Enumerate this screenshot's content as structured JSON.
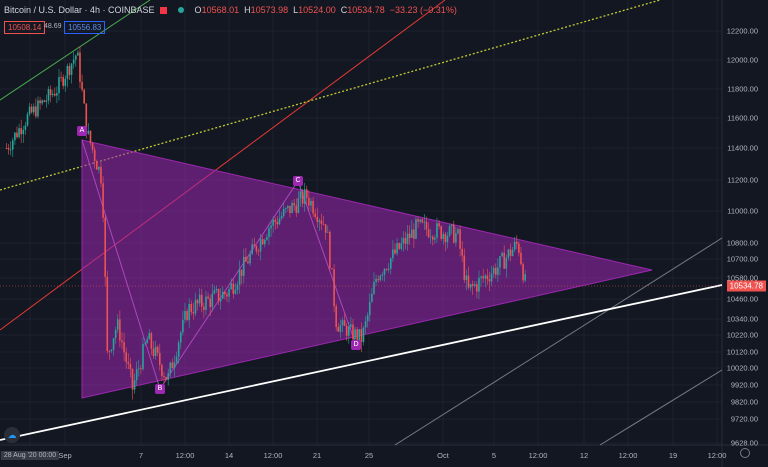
{
  "header": {
    "symbol": "Bitcoin / U.S. Dollar · 4h · COINBASE",
    "open_label": "O",
    "open": "10568.01",
    "high_label": "H",
    "high": "10573.98",
    "low_label": "L",
    "low": "10524.00",
    "close_label": "C",
    "close": "10534.78",
    "change": "−33.23 (−0.31%)",
    "bid": "10508.14",
    "spread": "48.69",
    "ask": "10556.83"
  },
  "colors": {
    "background": "#131722",
    "up": "#26a69a",
    "down": "#ef5350",
    "pattern": "#9c27b0"
  },
  "chart_data": {
    "type": "candlestick",
    "title": "Bitcoin / U.S. Dollar 4h",
    "timeframe": "4h",
    "y_ticks": [
      "12200.00",
      "12000.00",
      "11800.00",
      "11600.00",
      "11400.00",
      "11200.00",
      "11000.00",
      "10800.00",
      "10700.00",
      "10580.00",
      "10460.00",
      "10340.00",
      "10220.00",
      "10120.00",
      "10020.00",
      "9920.00",
      "9820.00",
      "9720.00",
      "9628.00"
    ],
    "x_ticks": [
      "28 Aug '20  00:00",
      "Sep",
      "7",
      "12:00",
      "14",
      "12:00",
      "21",
      "25",
      "Oct",
      "5",
      "12:00",
      "12",
      "12:00",
      "19",
      "12:00"
    ],
    "last_price": "10534.78",
    "price_path_days_from_sep1": [
      -5.2,
      -3.6,
      -1.2,
      0.4,
      1.2,
      2.4,
      2.8,
      3.6,
      4.8,
      6,
      7.6,
      9.2,
      12.4,
      15.6,
      18.6,
      20.2,
      21,
      23,
      24.2,
      27.4,
      30.6,
      31.4,
      33.8,
      35.4,
      36
    ],
    "price_path": [
      11400,
      11600,
      11800,
      12050,
      11500,
      11200,
      10100,
      10300,
      9900,
      10200,
      9950,
      10400,
      10500,
      10900,
      11100,
      10900,
      10300,
      10200,
      10600,
      10900,
      10850,
      10500,
      10650,
      10800,
      10534
    ],
    "pattern_points": [
      {
        "label": "A",
        "price": 11450
      },
      {
        "label": "B",
        "price": 9880
      },
      {
        "label": "C",
        "price": 11150
      },
      {
        "label": "D",
        "price": 10200
      }
    ]
  }
}
